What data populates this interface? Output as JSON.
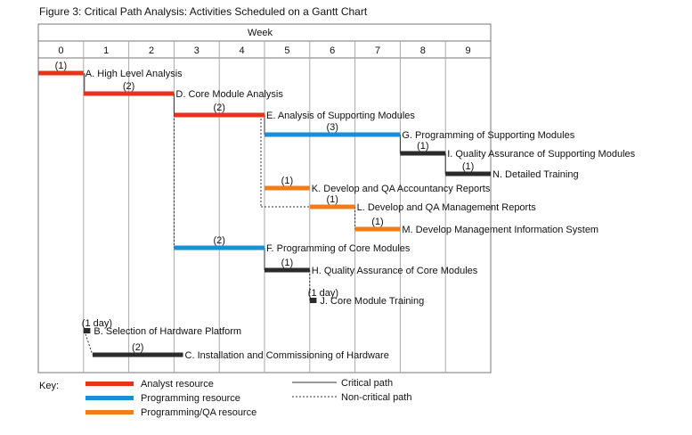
{
  "chart_data": {
    "type": "gantt",
    "title": "Figure 3:  Critical Path Analysis: Activities Scheduled on a Gantt Chart",
    "axis_label": "Week",
    "weeks": [
      "0",
      "1",
      "2",
      "3",
      "4",
      "5",
      "6",
      "7",
      "8",
      "9"
    ],
    "xlim": [
      0,
      9
    ],
    "activities": [
      {
        "id": "A",
        "label": "A. High Level Analysis",
        "start": 0,
        "end": 1,
        "duration": "(1)",
        "resource": "analyst"
      },
      {
        "id": "D",
        "label": "D. Core Module Analysis",
        "start": 1,
        "end": 3,
        "duration": "(2)",
        "resource": "analyst"
      },
      {
        "id": "E",
        "label": "E. Analysis of Supporting Modules",
        "start": 3,
        "end": 5,
        "duration": "(2)",
        "resource": "analyst"
      },
      {
        "id": "G",
        "label": "G. Programming of Supporting Modules",
        "start": 5,
        "end": 8,
        "duration": "(3)",
        "resource": "programming"
      },
      {
        "id": "I",
        "label": "I. Quality Assurance of Supporting Modules",
        "start": 8,
        "end": 9,
        "duration": "(1)",
        "resource": "other"
      },
      {
        "id": "N",
        "label": "N. Detailed Training",
        "start": 9,
        "end": 10,
        "duration": "(1)",
        "resource": "other"
      },
      {
        "id": "K",
        "label": "K. Develop and QA Accountancy Reports",
        "start": 5,
        "end": 6,
        "duration": "(1)",
        "resource": "programming_qa"
      },
      {
        "id": "L",
        "label": "L. Develop and QA Management Reports",
        "start": 6,
        "end": 7,
        "duration": "(1)",
        "resource": "programming_qa"
      },
      {
        "id": "M",
        "label": "M. Develop Management Information System",
        "start": 7,
        "end": 8,
        "duration": "(1)",
        "resource": "programming_qa"
      },
      {
        "id": "F",
        "label": "F. Programming of Core Modules",
        "start": 3,
        "end": 5,
        "duration": "(2)",
        "resource": "programming"
      },
      {
        "id": "H",
        "label": "H. Quality Assurance of Core Modules",
        "start": 5,
        "end": 6,
        "duration": "(1)",
        "resource": "other"
      },
      {
        "id": "J",
        "label": "J. Core Module Training",
        "start": 6,
        "end": 6.15,
        "duration": "(1 day)",
        "resource": "other"
      },
      {
        "id": "B",
        "label": "B. Selection of Hardware Platform",
        "start": 1,
        "end": 1.15,
        "duration": "(1 day)",
        "resource": "other"
      },
      {
        "id": "C",
        "label": "C. Installation and Commissioning of Hardware",
        "start": 1.2,
        "end": 3.2,
        "duration": "(2)",
        "resource": "other"
      }
    ],
    "colors": {
      "analyst": "#e8321c",
      "programming": "#1a8fd6",
      "programming_qa": "#f07c1a",
      "other": "#2b2b2b"
    },
    "key": {
      "title": "Key:",
      "resources": [
        {
          "name": "Analyst resource",
          "color_key": "analyst"
        },
        {
          "name": "Programming resource",
          "color_key": "programming"
        },
        {
          "name": "Programming/QA resource",
          "color_key": "programming_qa"
        }
      ],
      "paths": [
        {
          "name": "Critical path",
          "style": "solid"
        },
        {
          "name": "Non-critical path",
          "style": "dashed"
        }
      ]
    }
  }
}
